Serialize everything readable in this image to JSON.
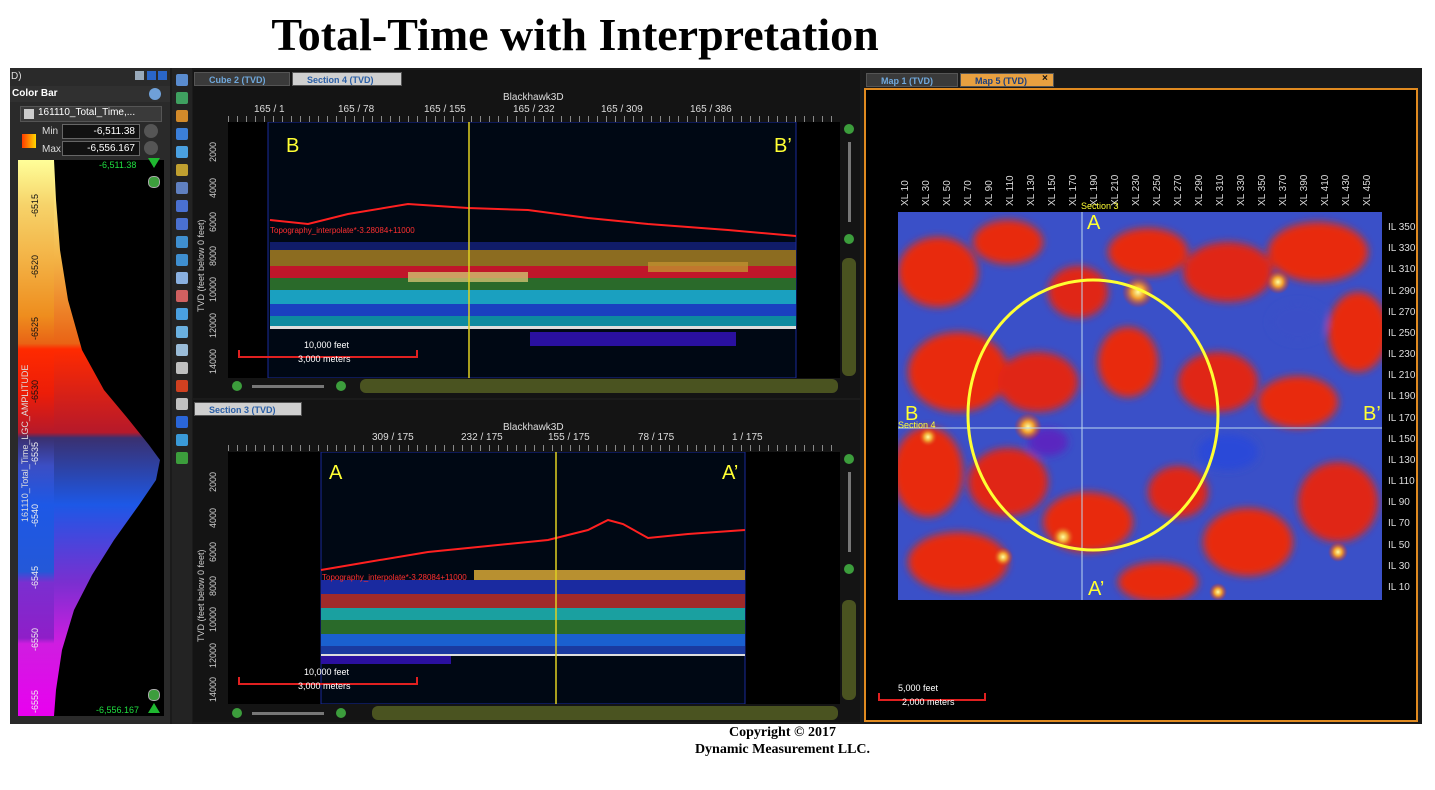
{
  "title": "Total-Time with Interpretation",
  "left_panel": {
    "top_partial": "D)",
    "header": "Color Bar",
    "dataset": "161110_Total_Time,...",
    "min_label": "Min",
    "min_value": "-6,511.38",
    "max_label": "Max",
    "max_value": "-6,556.167",
    "top_marker": "-6,511.38",
    "bottom_marker": "-6,556.167",
    "scale_ticks": [
      "-6515",
      "-6520",
      "-6525",
      "-6530",
      "-6535",
      "-6540",
      "-6545",
      "-6550",
      "-6555"
    ],
    "axis_label": "161110_Total_Time_LGC_AMPLITUDE"
  },
  "section4": {
    "tab_inactive": "Cube 2 (TVD)",
    "tab_active": "Section 4 (TVD)",
    "survey": "Blackhawk3D",
    "x_ticks": [
      "165 / 1",
      "165 / 78",
      "165 / 155",
      "165 / 232",
      "165 / 309",
      "165 / 386"
    ],
    "y_ticks": [
      "2000",
      "4000",
      "6000",
      "8000",
      "10000",
      "12000",
      "14000"
    ],
    "y_label": "TVD (feet below 0 feet)",
    "left_marker": "B",
    "right_marker": "B’",
    "horizon_label": "Topography_interpolate*-3.28084+11000",
    "scale_feet": "10,000 feet",
    "scale_meters": "3,000 meters"
  },
  "section3": {
    "tab_active": "Section 3 (TVD)",
    "survey": "Blackhawk3D",
    "x_ticks": [
      "309 / 175",
      "232 / 175",
      "155 / 175",
      "78 / 175",
      "1 / 175"
    ],
    "y_ticks": [
      "2000",
      "4000",
      "6000",
      "8000",
      "10000",
      "12000",
      "14000"
    ],
    "y_label": "TVD (feet below 0 feet)",
    "left_marker": "A",
    "right_marker": "A’",
    "horizon_label": "Topography_interpolate*-3.28084+11000",
    "scale_feet": "10,000 feet",
    "scale_meters": "3,000 meters"
  },
  "map": {
    "tab_inactive": "Map 1 (TVD)",
    "tab_active": "Map 5 (TVD)",
    "close": "×",
    "xl_labels": [
      "XL 10",
      "XL 30",
      "XL 50",
      "XL 70",
      "XL 90",
      "XL 110",
      "XL 130",
      "XL 150",
      "XL 170",
      "XL 190",
      "XL 210",
      "XL 230",
      "XL 250",
      "XL 270",
      "XL 290",
      "XL 310",
      "XL 330",
      "XL 350",
      "XL 370",
      "XL 390",
      "XL 410",
      "XL 430",
      "XL 450"
    ],
    "il_labels": [
      "IL 350",
      "IL 330",
      "IL 310",
      "IL 290",
      "IL 270",
      "IL 250",
      "IL 230",
      "IL 210",
      "IL 190",
      "IL 170",
      "IL 150",
      "IL 130",
      "IL 110",
      "IL 90",
      "IL 70",
      "IL 50",
      "IL 30",
      "IL 10"
    ],
    "section3_label": "Section 3",
    "section4_label": "Section 4",
    "marker_a": "A",
    "marker_a_prime": "A’",
    "marker_b": "B",
    "marker_b_prime": "B’",
    "scale_feet": "5,000 feet",
    "scale_meters": "2,000 meters"
  },
  "copyright": {
    "line1": "Copyright  © 2017",
    "line2": "Dynamic Measurement LLC."
  },
  "colors": {
    "accent_yellow": "#ffff33",
    "horizon_red": "#ff2020",
    "panel_bg": "#1b1b1b",
    "map_border": "#e08a20"
  }
}
